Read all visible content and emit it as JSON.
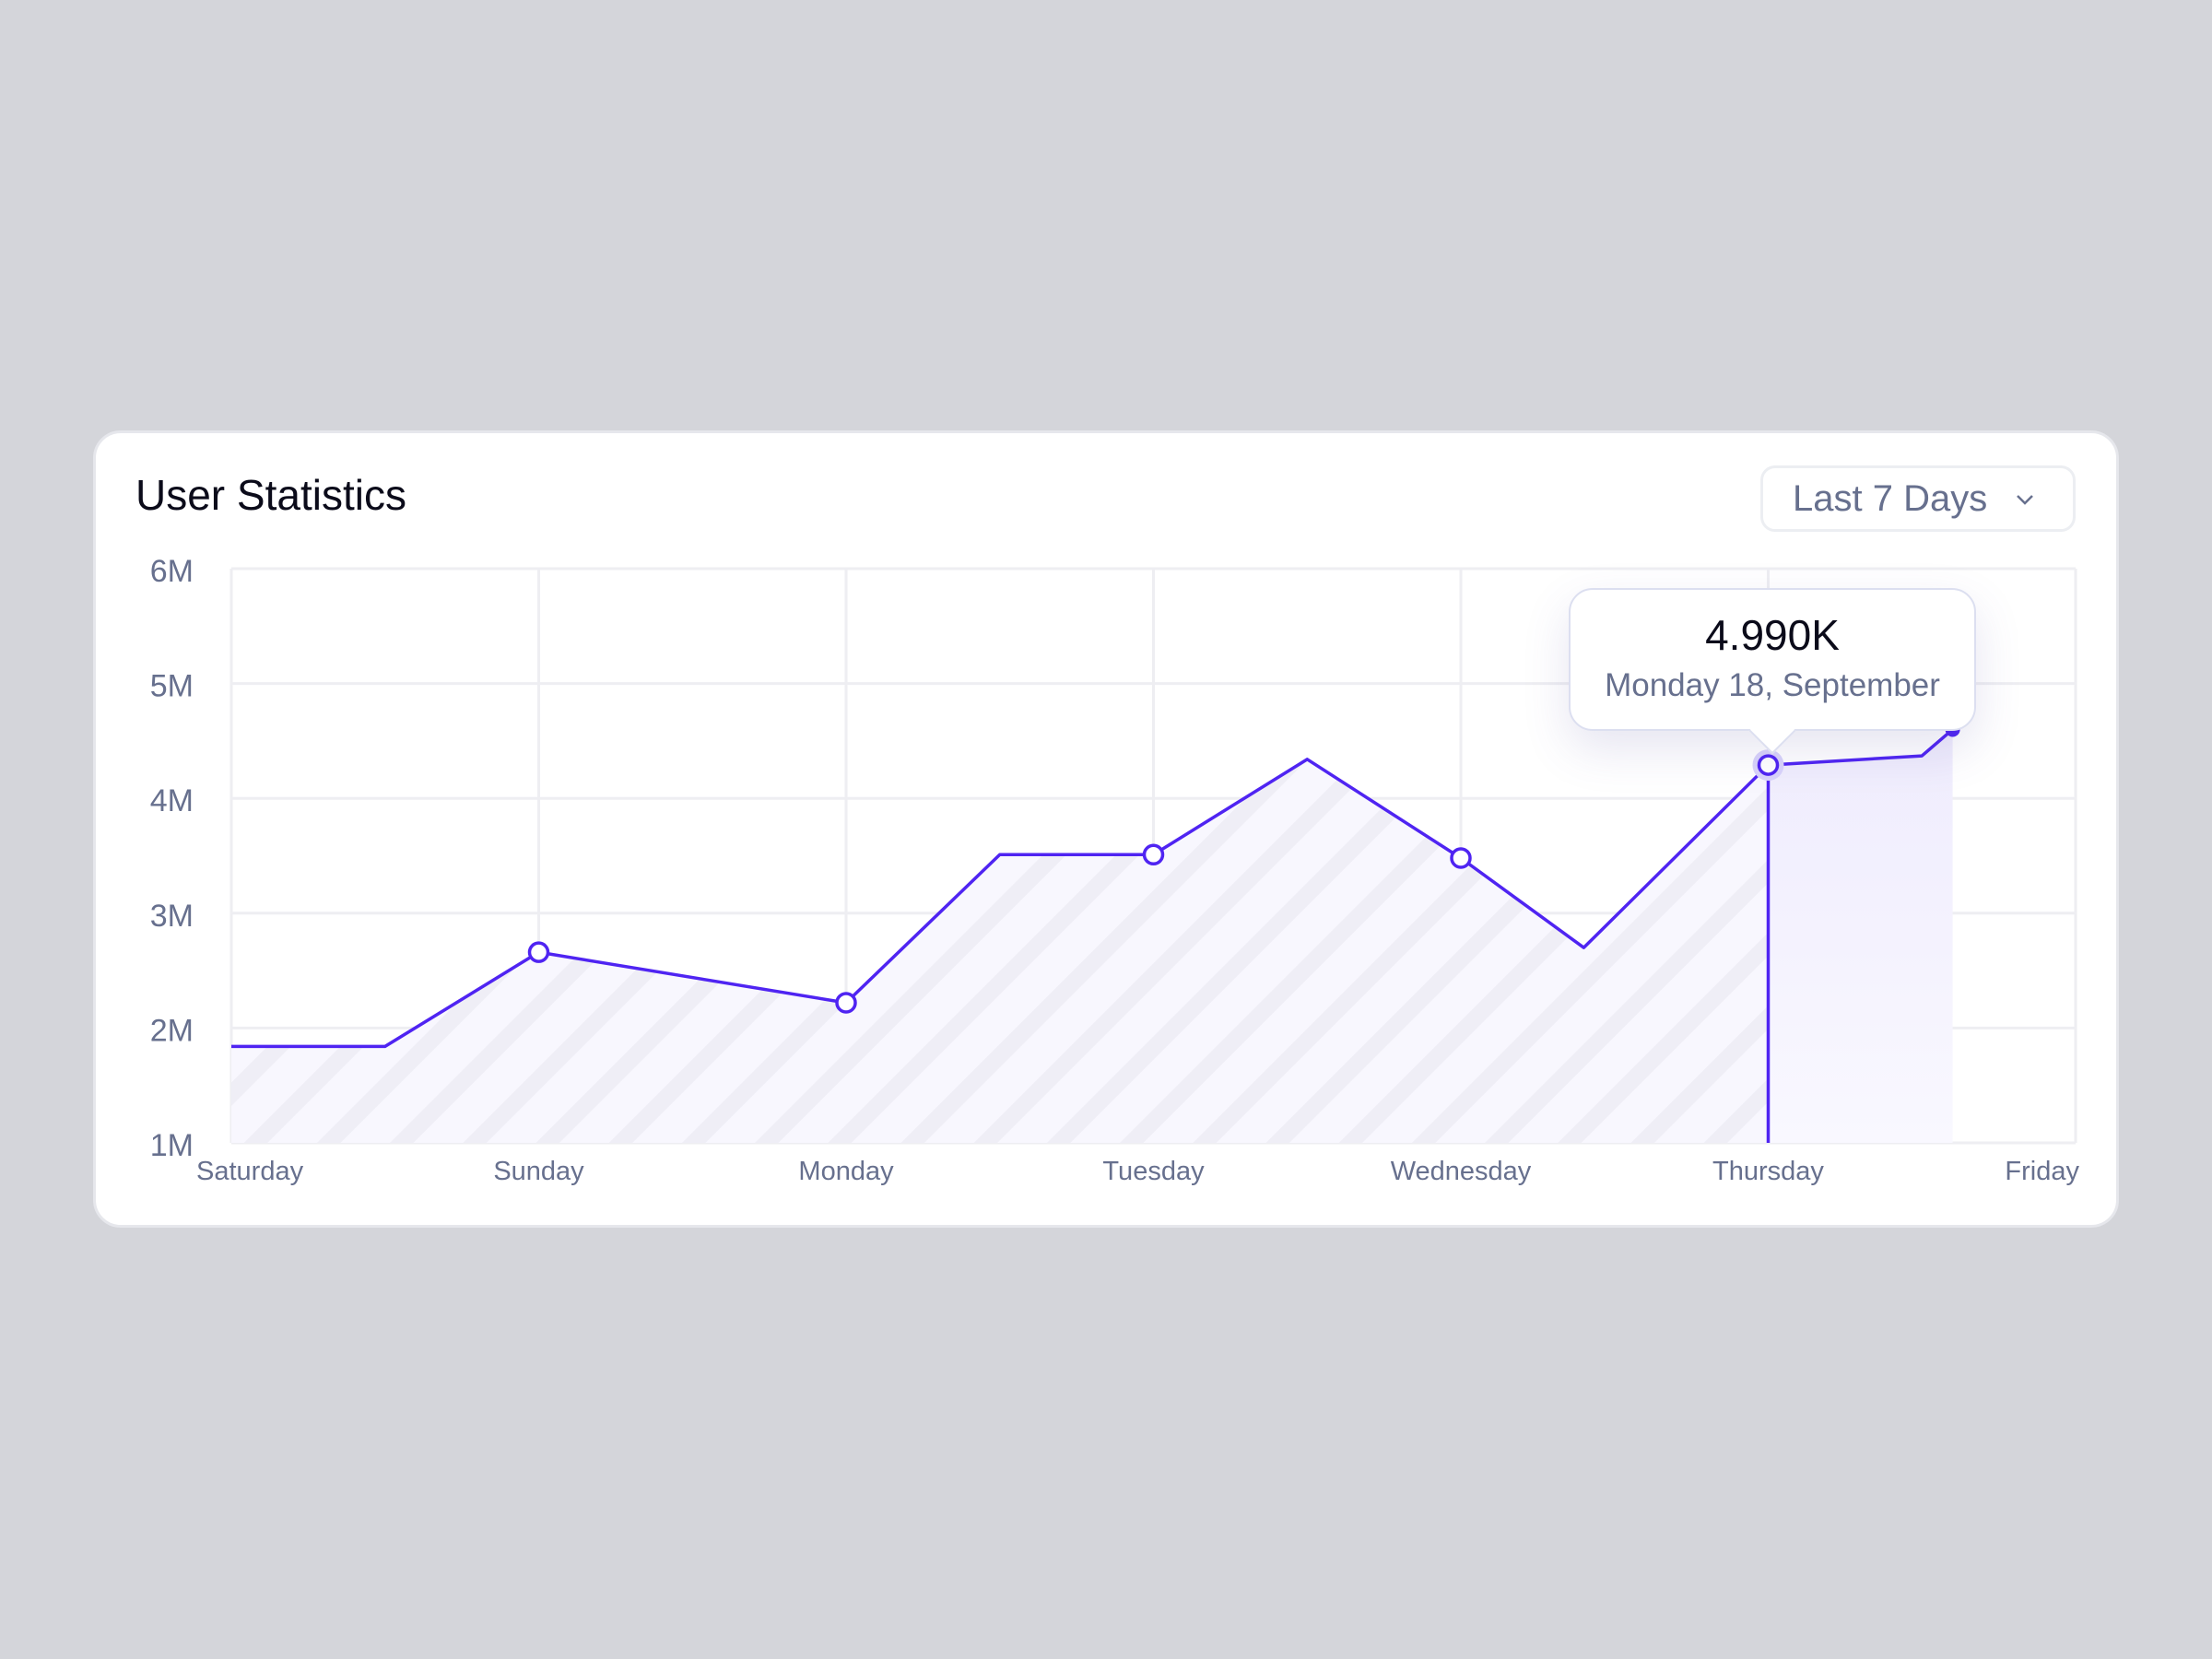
{
  "card": {
    "title": "User Statistics"
  },
  "range_select": {
    "value": "Last 7 Days",
    "icon": "chevron-down-icon"
  },
  "tooltip": {
    "value": "4.990K",
    "date": "Monday 18, September"
  },
  "colors": {
    "line": "#4f24f2",
    "area": "#f6f4fe",
    "stripe": "#ecebf5",
    "highlight": "#efecfd",
    "grid": "#eeeef2",
    "label": "#67708e"
  },
  "chart_data": {
    "type": "area",
    "title": "User Statistics",
    "categories": [
      "Saturday",
      "Sunday",
      "Monday",
      "Tuesday",
      "Wednesday",
      "Thursday",
      "Friday"
    ],
    "y_ticks": [
      "1M",
      "2M",
      "3M",
      "4M",
      "5M",
      "6M"
    ],
    "ylim": [
      1,
      6
    ],
    "y_unit": "M",
    "grid": true,
    "series": [
      {
        "x": [
          0,
          0.5,
          1,
          2,
          2.5,
          3,
          3.5,
          4,
          4.4,
          5,
          5.5,
          5.6
        ],
        "y": [
          1.84,
          1.84,
          2.66,
          2.22,
          3.51,
          3.51,
          4.34,
          3.48,
          2.7,
          4.29,
          4.37,
          4.6
        ],
        "markers": [
          1,
          2,
          3,
          4,
          5
        ]
      }
    ],
    "highlight": {
      "x": 5,
      "category": "Thursday"
    }
  }
}
